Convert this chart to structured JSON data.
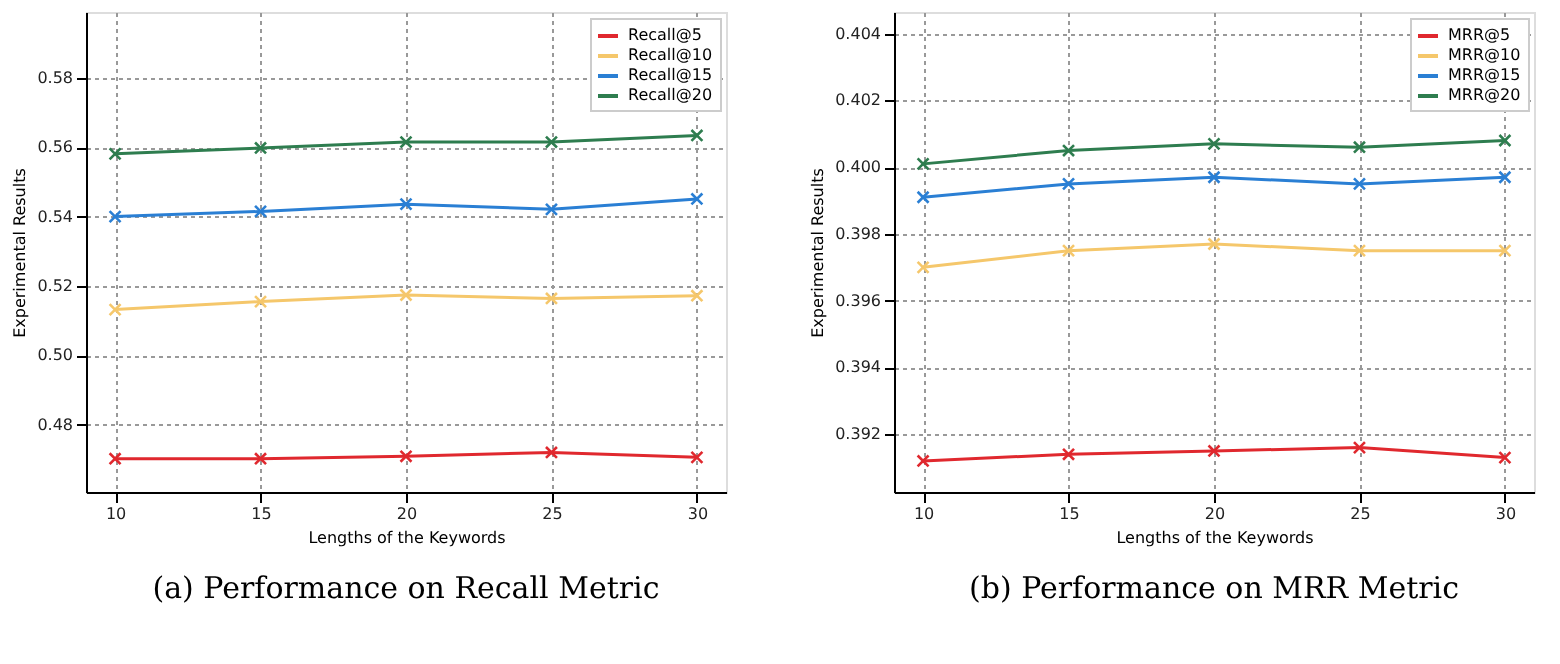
{
  "chart_data": [
    {
      "type": "line",
      "title": "(a)  Performance on Recall Metric",
      "xlabel": "Lengths of the Keywords",
      "ylabel": "Experimental Results",
      "x": [
        10,
        15,
        20,
        25,
        30
      ],
      "xlim": [
        9,
        31
      ],
      "xticks": [
        10,
        15,
        20,
        25,
        30
      ],
      "ylim": [
        0.4606,
        0.599
      ],
      "yticks": [
        0.48,
        {
          "value": 0.5,
          "label": "0.50"
        },
        0.52,
        0.54,
        0.56,
        0.58
      ],
      "grid": true,
      "legend": "top right",
      "marker": "cross",
      "line_style": "solid",
      "series": [
        {
          "name": "Recall@5",
          "color": "#e0282e",
          "values": [
            0.4702,
            0.4702,
            0.4709,
            0.472,
            0.4706
          ]
        },
        {
          "name": "Recall@10",
          "color": "#f5c76b",
          "values": [
            0.5132,
            0.5155,
            0.5174,
            0.5164,
            0.5172
          ]
        },
        {
          "name": "Recall@15",
          "color": "#2a7fd4",
          "values": [
            0.54,
            0.5415,
            0.5436,
            0.5421,
            0.5451
          ]
        },
        {
          "name": "Recall@20",
          "color": "#2e7d4f",
          "values": [
            0.5581,
            0.5598,
            0.5615,
            0.5615,
            0.5634
          ]
        }
      ]
    },
    {
      "type": "line",
      "title": "(b)  Performance on MRR Metric",
      "xlabel": "Lengths of the Keywords",
      "ylabel": "Experimental Results",
      "x": [
        10,
        15,
        20,
        25,
        30
      ],
      "xlim": [
        9,
        31
      ],
      "xticks": [
        10,
        15,
        20,
        25,
        30
      ],
      "ylim": [
        0.39027,
        0.40465
      ],
      "yticks": [
        0.392,
        0.394,
        0.396,
        0.398,
        {
          "value": 0.4,
          "label": "0.400"
        },
        0.402,
        0.404
      ],
      "grid": true,
      "legend": "top right",
      "marker": "cross",
      "line_style": "solid",
      "series": [
        {
          "name": "MRR@5",
          "color": "#e0282e",
          "values": [
            0.3912,
            0.3914,
            0.3915,
            0.3916,
            0.3913
          ]
        },
        {
          "name": "MRR@10",
          "color": "#f5c76b",
          "values": [
            0.397,
            0.3975,
            0.3977,
            0.3975,
            0.3975
          ]
        },
        {
          "name": "MRR@15",
          "color": "#2a7fd4",
          "values": [
            0.3991,
            0.3995,
            0.3997,
            0.3995,
            0.3997
          ]
        },
        {
          "name": "MRR@20",
          "color": "#2e7d4f",
          "values": [
            0.4001,
            0.4005,
            0.4007,
            0.4006,
            0.4008
          ]
        }
      ]
    }
  ]
}
